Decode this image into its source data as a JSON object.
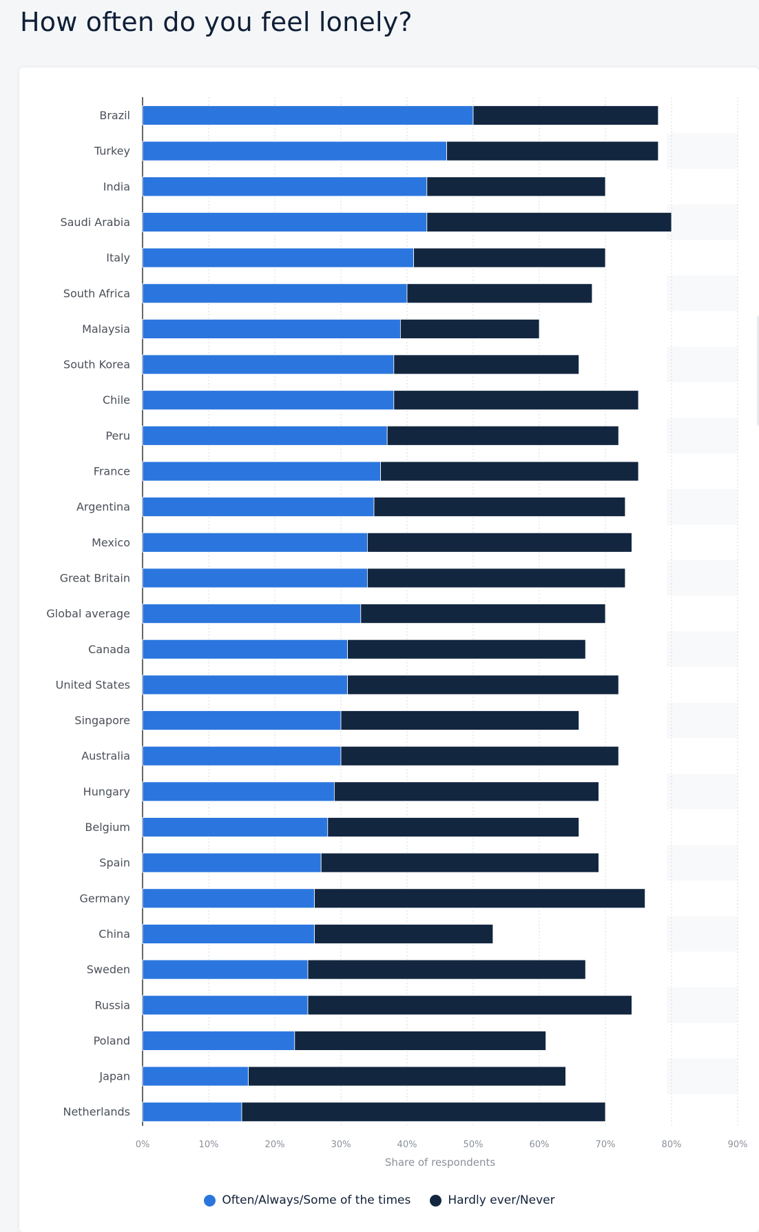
{
  "page": {
    "title": "How often do you feel lonely?"
  },
  "colors": {
    "series1": "#2b76de",
    "series2": "#12263f",
    "grid": "#d5d9de",
    "band": "#f8f9fa",
    "axis": "#333333"
  },
  "legend": {
    "items": [
      {
        "label": "Often/Always/Some of the times",
        "color": "#2b76de"
      },
      {
        "label": "Hardly ever/Never",
        "color": "#12263f"
      }
    ]
  },
  "chart_data": {
    "type": "bar",
    "orientation": "horizontal",
    "stacked": true,
    "title": "How often do you feel lonely?",
    "xlabel": "Share of respondents",
    "ylabel": "",
    "xlim": [
      0,
      90
    ],
    "xticks": [
      "0%",
      "10%",
      "20%",
      "30%",
      "40%",
      "50%",
      "60%",
      "70%",
      "80%",
      "90%"
    ],
    "grid": true,
    "legend_position": "bottom",
    "categories": [
      "Brazil",
      "Turkey",
      "India",
      "Saudi Arabia",
      "Italy",
      "South Africa",
      "Malaysia",
      "South Korea",
      "Chile",
      "Peru",
      "France",
      "Argentina",
      "Mexico",
      "Great Britain",
      "Global average",
      "Canada",
      "United States",
      "Singapore",
      "Australia",
      "Hungary",
      "Belgium",
      "Spain",
      "Germany",
      "China",
      "Sweden",
      "Russia",
      "Poland",
      "Japan",
      "Netherlands"
    ],
    "series": [
      {
        "name": "Often/Always/Some of the times",
        "values": [
          50,
          46,
          43,
          43,
          41,
          40,
          39,
          38,
          38,
          37,
          36,
          35,
          34,
          34,
          33,
          31,
          31,
          30,
          30,
          29,
          28,
          27,
          26,
          26,
          25,
          25,
          23,
          16,
          15
        ]
      },
      {
        "name": "Hardly ever/Never",
        "values": [
          28,
          32,
          27,
          37,
          29,
          28,
          21,
          28,
          37,
          35,
          39,
          38,
          40,
          39,
          37,
          36,
          41,
          36,
          42,
          40,
          38,
          42,
          50,
          27,
          42,
          49,
          38,
          48,
          55
        ]
      }
    ]
  }
}
